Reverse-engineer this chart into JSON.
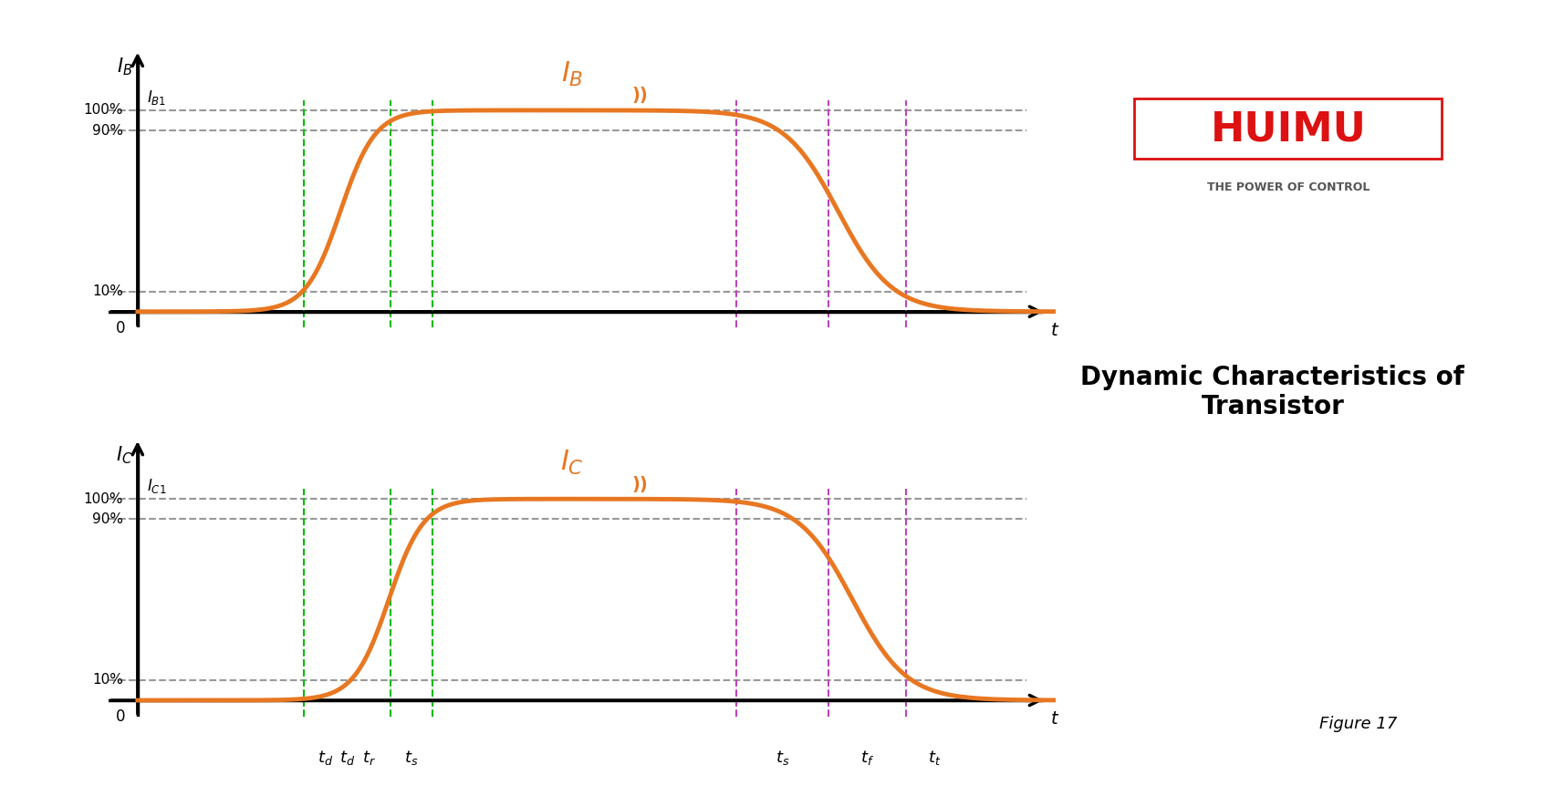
{
  "fig_width": 17.01,
  "fig_height": 8.73,
  "bg_color": "#ffffff",
  "orange_color": "#E87722",
  "green_dashed_color": "#00BB00",
  "purple_dashed_color": "#BB44BB",
  "gray_dashed_color": "#999999",
  "black_color": "#000000",
  "title_text": "Dynamic Characteristics of Transistor",
  "figure_label": "Figure 17",
  "huimu_red": "#DD1111",
  "huimu_gray": "#555555",
  "IB_label": "I_B",
  "IC_label": "I_C",
  "IB1_label": "I_{B1}",
  "IC1_label": "I_{C1}",
  "percent_100": "100%",
  "percent_90": "90%",
  "percent_10": "10%",
  "td_label": "t_d",
  "tr_label": "t_r",
  "ts_label": "t_s",
  "ts2_label": "t_s",
  "tf_label": "t_f",
  "tt_label": "t_t",
  "t_label": "t",
  "zero_label": "0"
}
